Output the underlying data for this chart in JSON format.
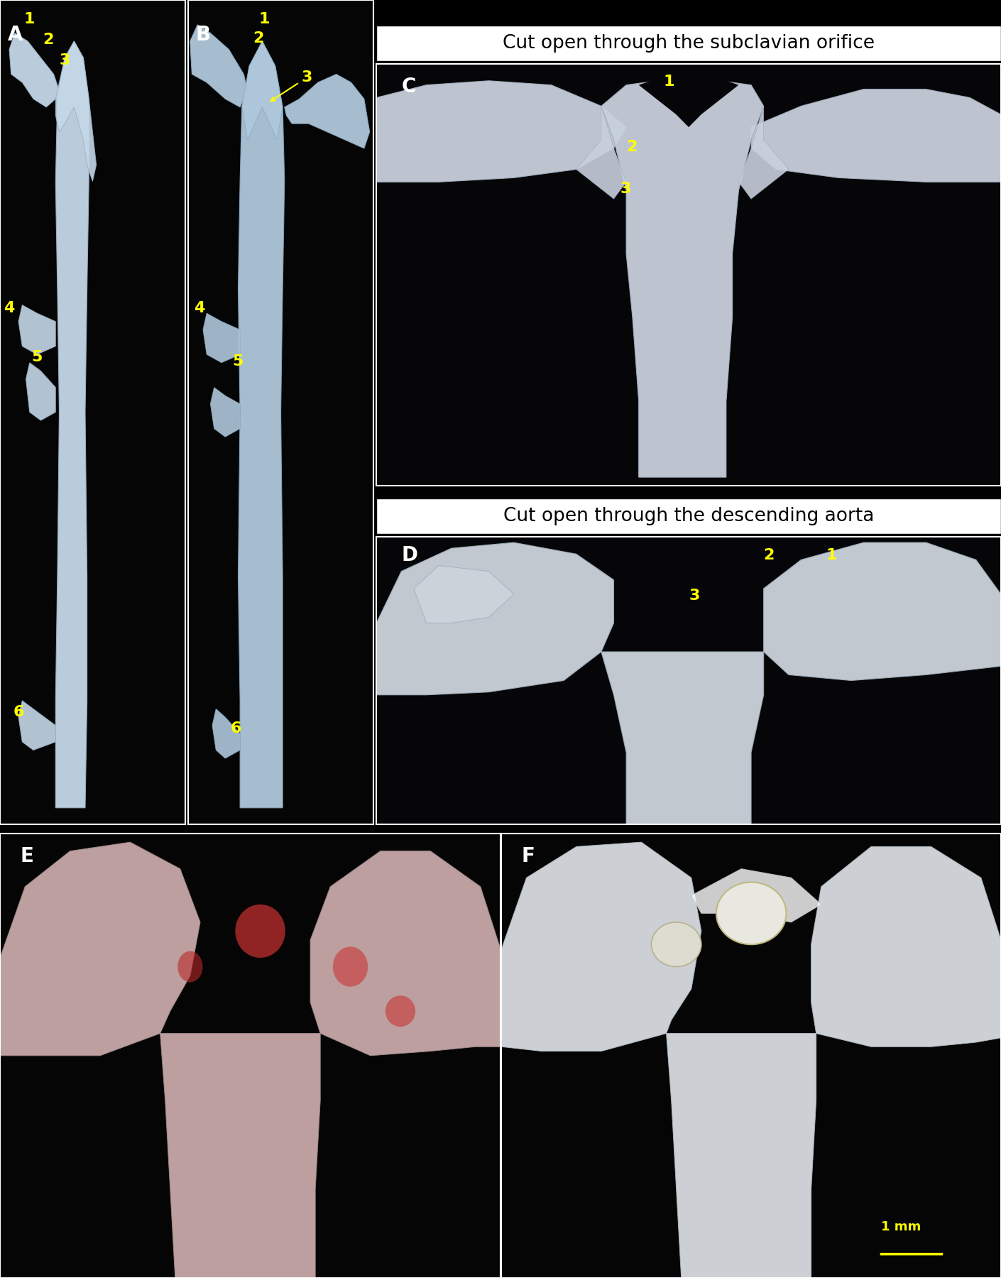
{
  "figure_width": 14.1,
  "figure_height": 18.0,
  "dpi": 100,
  "bg": "#000000",
  "yellow": "#ffff00",
  "white": "#ffffff",
  "label_fs": 20,
  "num_fs": 16,
  "hdr_fs": 19,
  "layout": {
    "A": [
      0.0,
      0.355,
      0.185,
      0.645
    ],
    "B": [
      0.188,
      0.355,
      0.185,
      0.645
    ],
    "hdr1": [
      0.376,
      0.952,
      0.624,
      0.028
    ],
    "C": [
      0.376,
      0.62,
      0.624,
      0.33
    ],
    "hdr2": [
      0.376,
      0.582,
      0.624,
      0.028
    ],
    "D": [
      0.376,
      0.355,
      0.624,
      0.225
    ],
    "E": [
      0.0,
      0.0,
      0.5,
      0.348
    ],
    "F": [
      0.501,
      0.0,
      0.499,
      0.348
    ]
  },
  "vessel_blue_light": "#c5d8e8",
  "vessel_blue_mid": "#b0c8dc",
  "vessel_blue_dark": "#90aac0",
  "vessel_gray": "#c0c8d0",
  "vessel_pink": "#d4b8b8",
  "vessel_white": "#dde0e4"
}
